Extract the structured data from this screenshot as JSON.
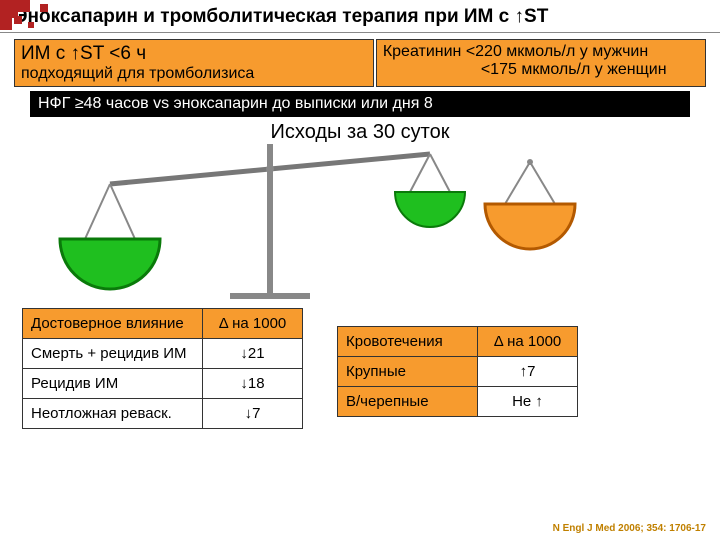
{
  "deco": {
    "color": "#b22222",
    "squares": [
      [
        0,
        0,
        18
      ],
      [
        18,
        0,
        12
      ],
      [
        40,
        4,
        8
      ],
      [
        0,
        18,
        12
      ],
      [
        14,
        16,
        8
      ],
      [
        28,
        22,
        6
      ]
    ]
  },
  "title": {
    "pre": "Эноксапарин и тромболитическая терапия при ИМ с ",
    "arrow": "↑",
    "post": "ST"
  },
  "topLeft": {
    "line1_pre": "ИМ с ",
    "line1_arrow": "↑",
    "line1_post": "ST <6 ч",
    "line2": "подходящий для тромболизиса"
  },
  "topRight": {
    "line1": "Креатинин <220 мкмоль/л у мужчин",
    "line2": "<175 мкмоль/л у женщин"
  },
  "blackBar": "НФГ ≥48 часов vs эноксапарин до выписки или дня 8",
  "midLabel": "Исходы за 30 суток",
  "scale": {
    "greenFill": "#1fbf1f",
    "greenStroke": "#0a7a0a",
    "orangeFill": "#f79b2e",
    "orangeStroke": "#b35900",
    "gray": "#888",
    "beamColor": "#777"
  },
  "table1": {
    "headers": [
      "Достоверное влияние",
      "Δ на 1000"
    ],
    "rows": [
      {
        "label": "Смерть + рецидив ИМ",
        "delta": "↓21"
      },
      {
        "label": "Рецидив ИМ",
        "delta": "↓18"
      },
      {
        "label": "Неотложная реваск.",
        "delta": "↓7"
      }
    ]
  },
  "table2": {
    "headers": [
      "Кровотечения",
      "Δ на 1000"
    ],
    "rows": [
      {
        "label": "Крупные",
        "delta": "↑7"
      },
      {
        "label": "В/черепные",
        "delta": "Не ↑"
      }
    ]
  },
  "citation": "N Engl J Med 2006; 354: 1706-17"
}
